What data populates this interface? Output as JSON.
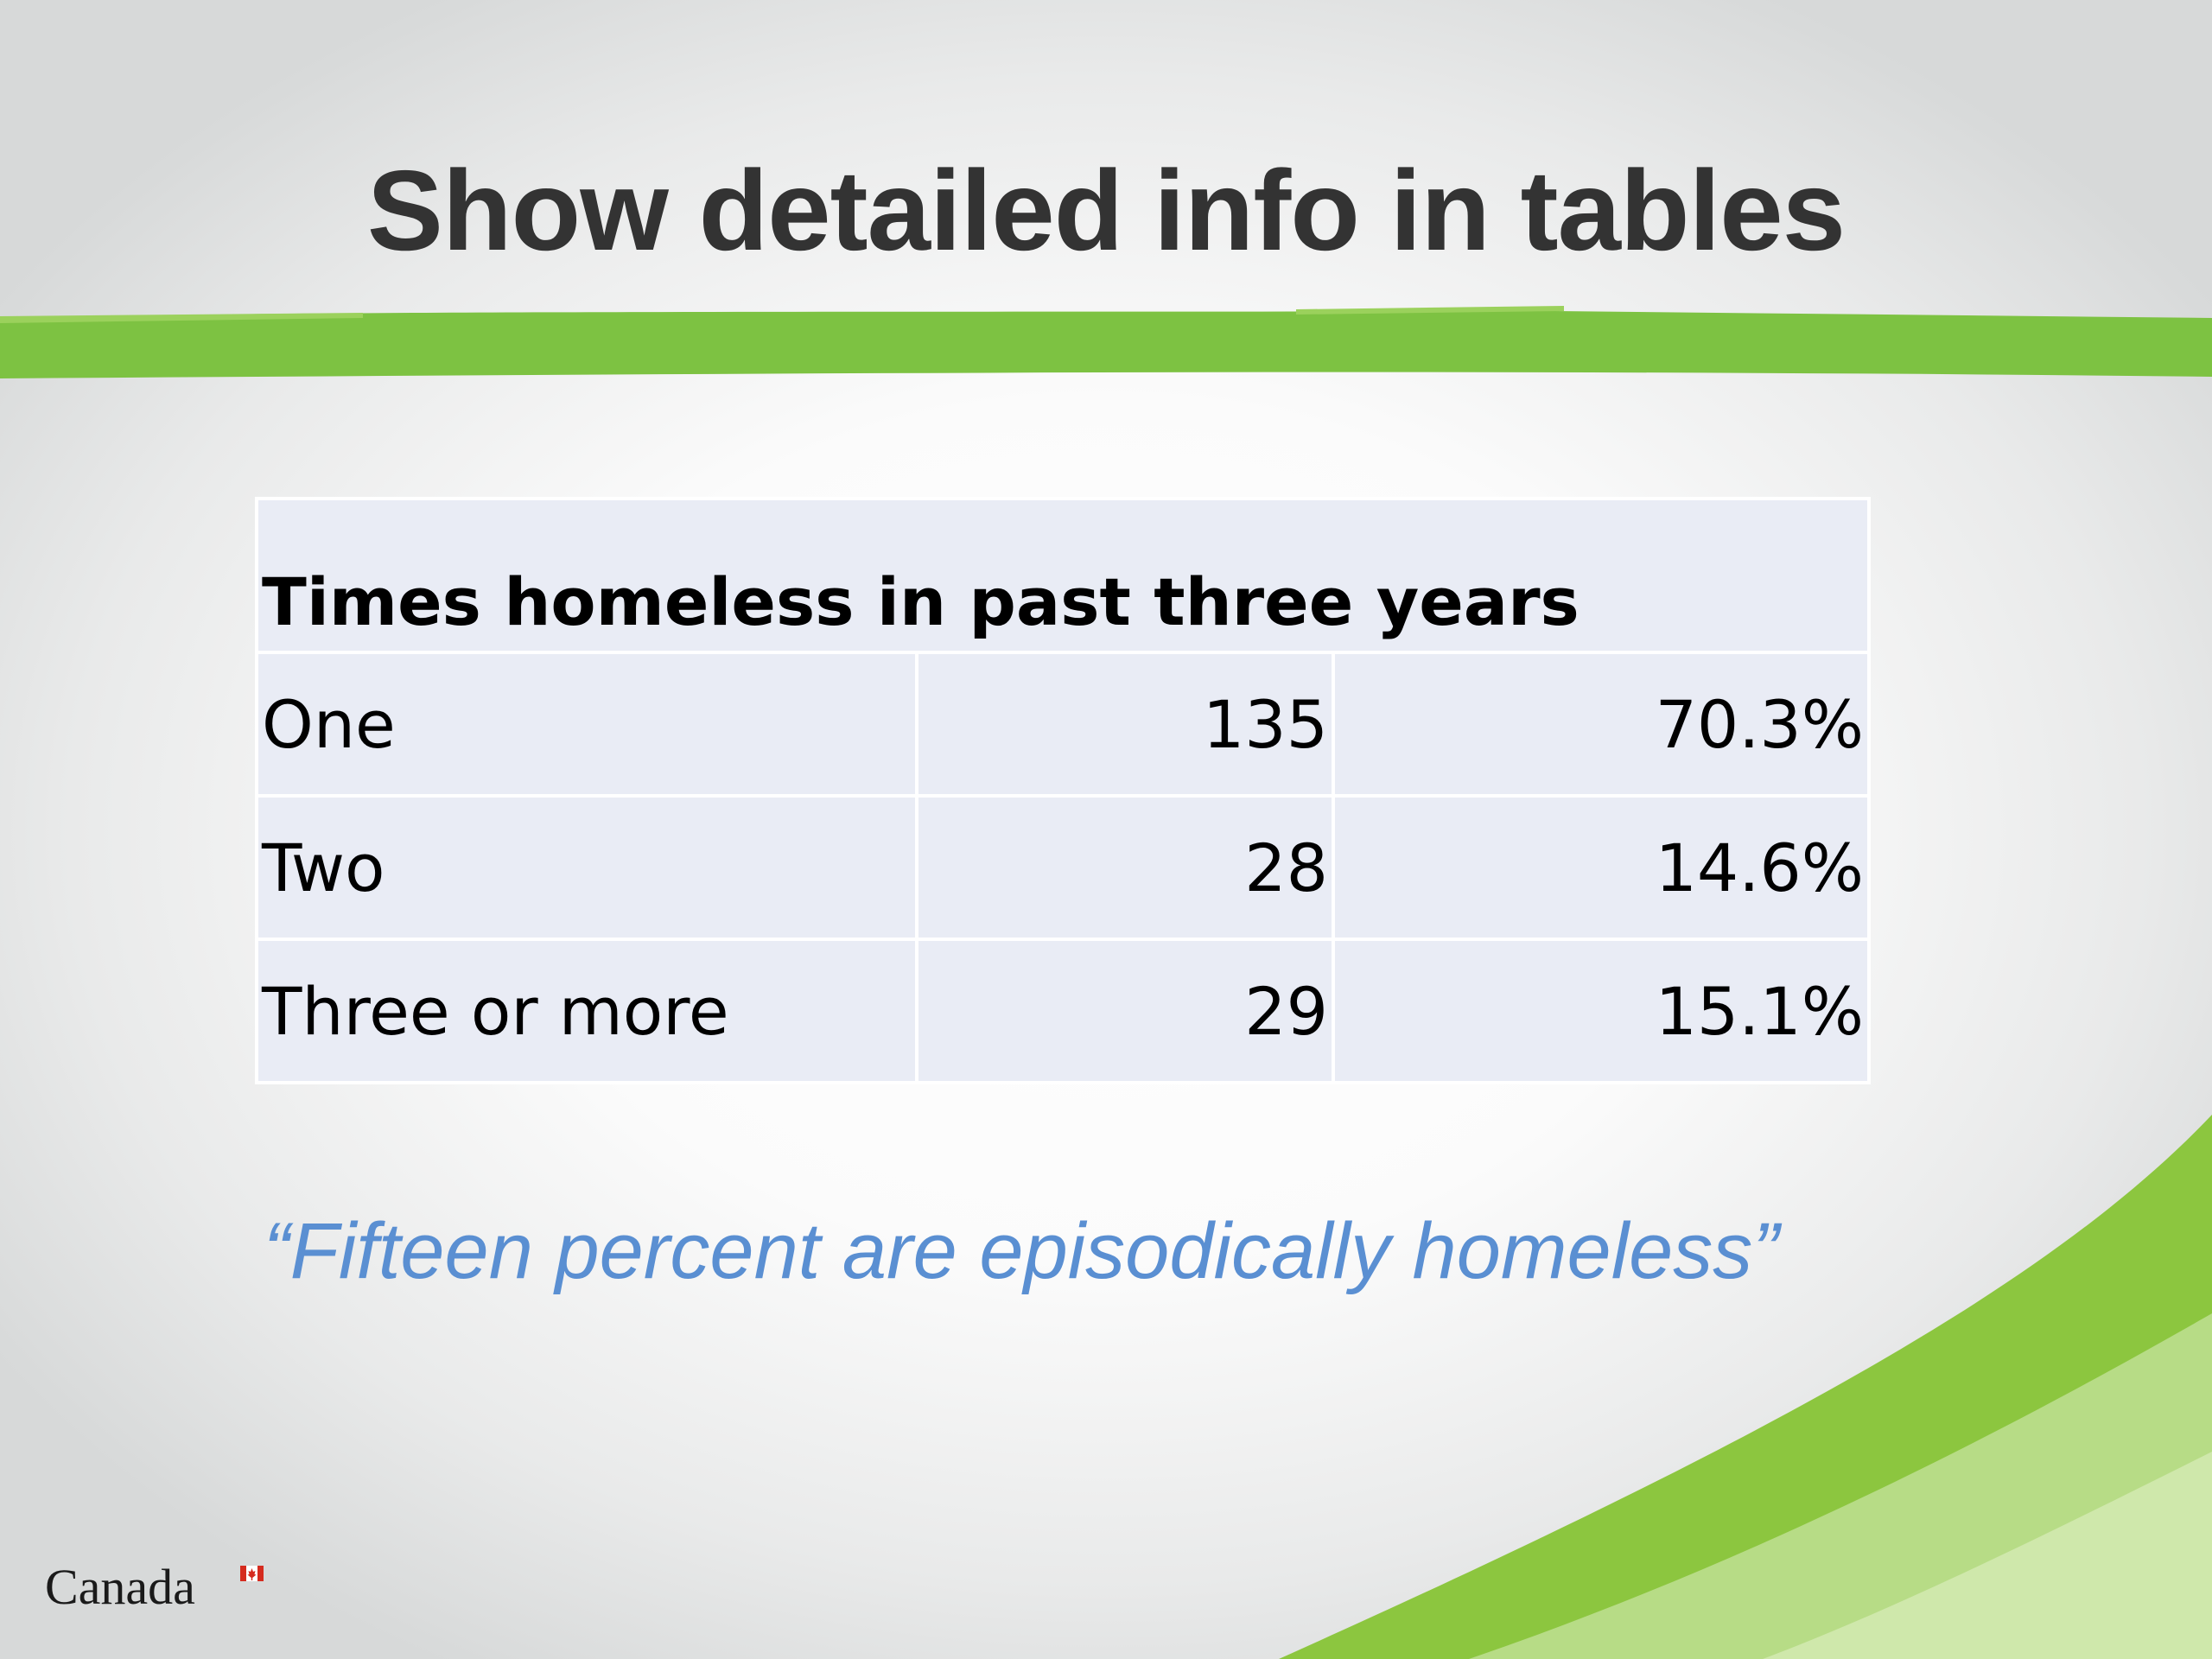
{
  "slide": {
    "title": "Show detailed info in tables",
    "quote": "“Fifteen percent are episodically homeless”",
    "logo_text": "Canada"
  },
  "table": {
    "header": "Times homeless in past three years",
    "rows": [
      {
        "label": "One",
        "count": "135",
        "percent": "70.3%"
      },
      {
        "label": "Two",
        "count": "28",
        "percent": "14.6%"
      },
      {
        "label": "Three or more",
        "count": "29",
        "percent": "15.1%"
      }
    ]
  },
  "colors": {
    "title": "#333333",
    "accent_green": "#7dc242",
    "quote": "#5a8fd2",
    "table_cell": "#e9ecf5"
  }
}
